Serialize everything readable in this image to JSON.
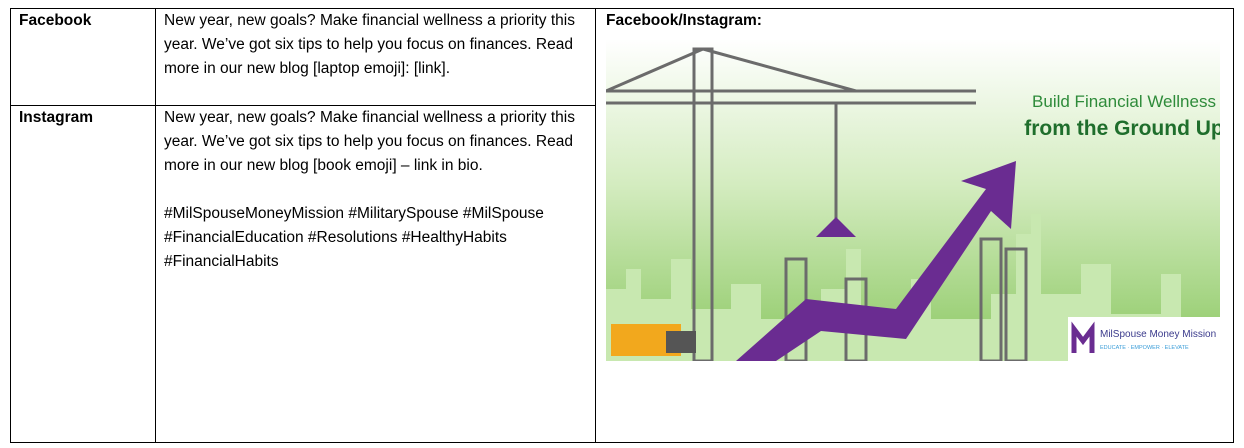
{
  "table": {
    "rows": [
      {
        "platform": "Facebook",
        "copy": [
          "New year, new goals? Make financial wellness a priority this year. We’ve got six tips to help you focus on finances. Read more in our new blog [laptop emoji]: [link]."
        ]
      },
      {
        "platform": "Instagram",
        "copy": [
          "New year, new goals? Make financial wellness a priority this year. We’ve got six tips to help you focus on finances. Read more in our new blog [book emoji] – link in bio.",
          "#MilSpouseMoneyMission #MilitarySpouse #MilSpouse #FinancialEducation #Resolutions #HealthyHabits #FinancialHabits"
        ]
      }
    ],
    "image_cell": {
      "heading": "Facebook/Instagram:",
      "graphic": {
        "headline": "Build Financial Wellness",
        "subheadline": "from the Ground Up",
        "logo_name": "MilSpouse Money Mission",
        "logo_tagline": "EDUCATE · EMPOWER · ELEVATE"
      }
    }
  }
}
